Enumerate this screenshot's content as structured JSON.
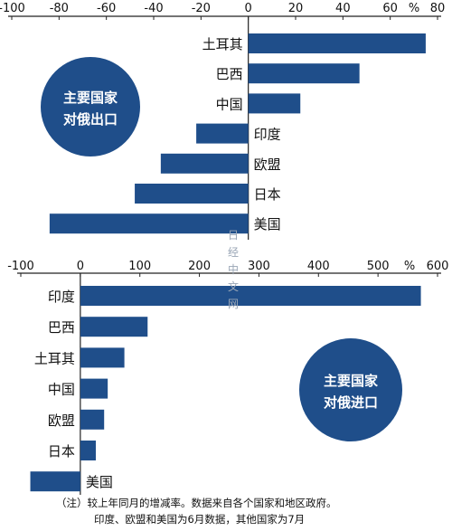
{
  "chart_data": [
    {
      "type": "bar",
      "orientation": "horizontal",
      "badge": [
        "主要国家",
        "对俄出口"
      ],
      "unit": "%",
      "xlim": [
        -100,
        80
      ],
      "ticks": [
        -100,
        -80,
        -60,
        -40,
        -20,
        0,
        20,
        40,
        60,
        80
      ],
      "categories": [
        "土耳其",
        "巴西",
        "中国",
        "印度",
        "欧盟",
        "日本",
        "美国"
      ],
      "values": [
        75,
        47,
        22,
        -22,
        -37,
        -48,
        -84
      ],
      "bar_color": "#1f4e8a"
    },
    {
      "type": "bar",
      "orientation": "horizontal",
      "badge": [
        "主要国家",
        "对俄进口"
      ],
      "unit": "%",
      "xlim": [
        -100,
        600
      ],
      "ticks": [
        -100,
        0,
        100,
        200,
        300,
        400,
        500,
        600
      ],
      "categories": [
        "印度",
        "巴西",
        "土耳其",
        "中国",
        "欧盟",
        "日本",
        "美国"
      ],
      "values": [
        572,
        113,
        74,
        46,
        40,
        26,
        -84
      ],
      "bar_color": "#1f4e8a"
    }
  ],
  "watermark": [
    "日",
    "经",
    "中",
    "文",
    "网"
  ],
  "note": {
    "line1": "（注）较上年同月的增减率。数据来自各个国家和地区政府。",
    "line2": "印度、欧盟和美国为6月数据，其他国家为7月"
  }
}
